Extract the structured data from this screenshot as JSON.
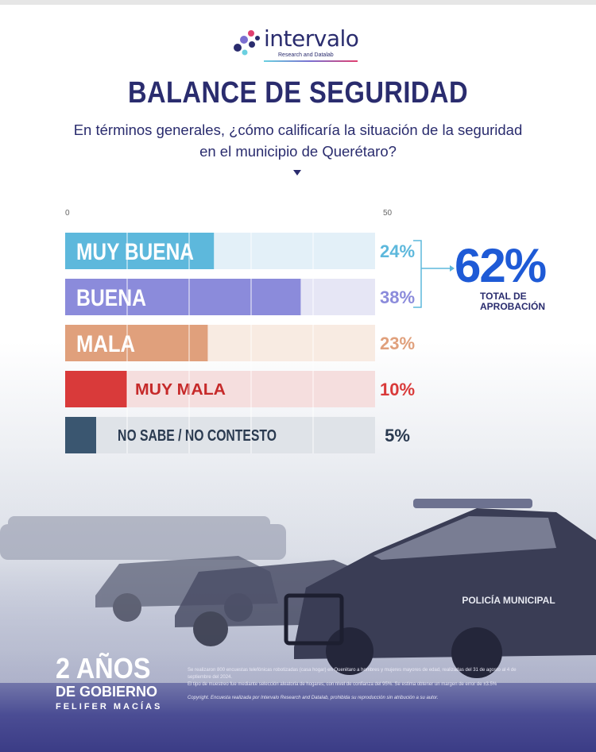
{
  "brand": {
    "name": "intervalo",
    "tagline": "Research and Datalab"
  },
  "header": {
    "title": "BALANCE DE SEGURIDAD",
    "question": "En términos generales, ¿cómo calificaría la situación de la seguridad en el municipio de Querétaro?"
  },
  "chart_data": {
    "type": "bar",
    "orientation": "horizontal",
    "axis_ticks": [
      "0",
      "50"
    ],
    "xlim": [
      0,
      50
    ],
    "grid": true,
    "categories": [
      "MUY BUENA",
      "BUENA",
      "MALA",
      "MUY MALA",
      "NO SABE / NO CONTESTO"
    ],
    "values": [
      24,
      38,
      23,
      10,
      5
    ],
    "value_labels": [
      "24%",
      "38%",
      "23%",
      "10%",
      "5%"
    ],
    "colors": [
      "#5db8dc",
      "#8b8bdb",
      "#e0a07c",
      "#d93a3a",
      "#3a5670"
    ],
    "track_colors": [
      "#e3f0f8",
      "#e6e6f5",
      "#f8ebe2",
      "#f5dede",
      "#dfe3e8"
    ],
    "label_colors": [
      "#ffffff",
      "#ffffff",
      "#ffffff",
      "#c62a2a",
      "#2a3a50"
    ],
    "value_colors": [
      "#5db8dc",
      "#8b8bdb",
      "#e0a07c",
      "#d93a3a",
      "#2a3a50"
    ]
  },
  "summary": {
    "value": "62%",
    "label": "TOTAL DE APROBACIÓN"
  },
  "footer": {
    "line1": "2 AÑOS",
    "line2": "DE GOBIERNO",
    "line3": "FELIFER MACÍAS",
    "method1": "Se realizaron 800 encuestas telefónicas robotizadas (casa hogar) en Querétaro a hombres y mujeres mayores de edad, realizadas del 31 de agosto al 4 de septiembre del 2024.",
    "method2": "El tipo de muestreo fue mediante selección aleatoria de hogares, con nivel de confianza del 95%. Se estima obtener un margen de error de ±3.5%",
    "copyright": "Copyright. Encuesta realizada por Intervalo Research and Datalab, prohibida su reproducción sin atribución a su autor."
  },
  "scene": {
    "vehicle_text": "POLICÍA MUNICIPAL"
  }
}
